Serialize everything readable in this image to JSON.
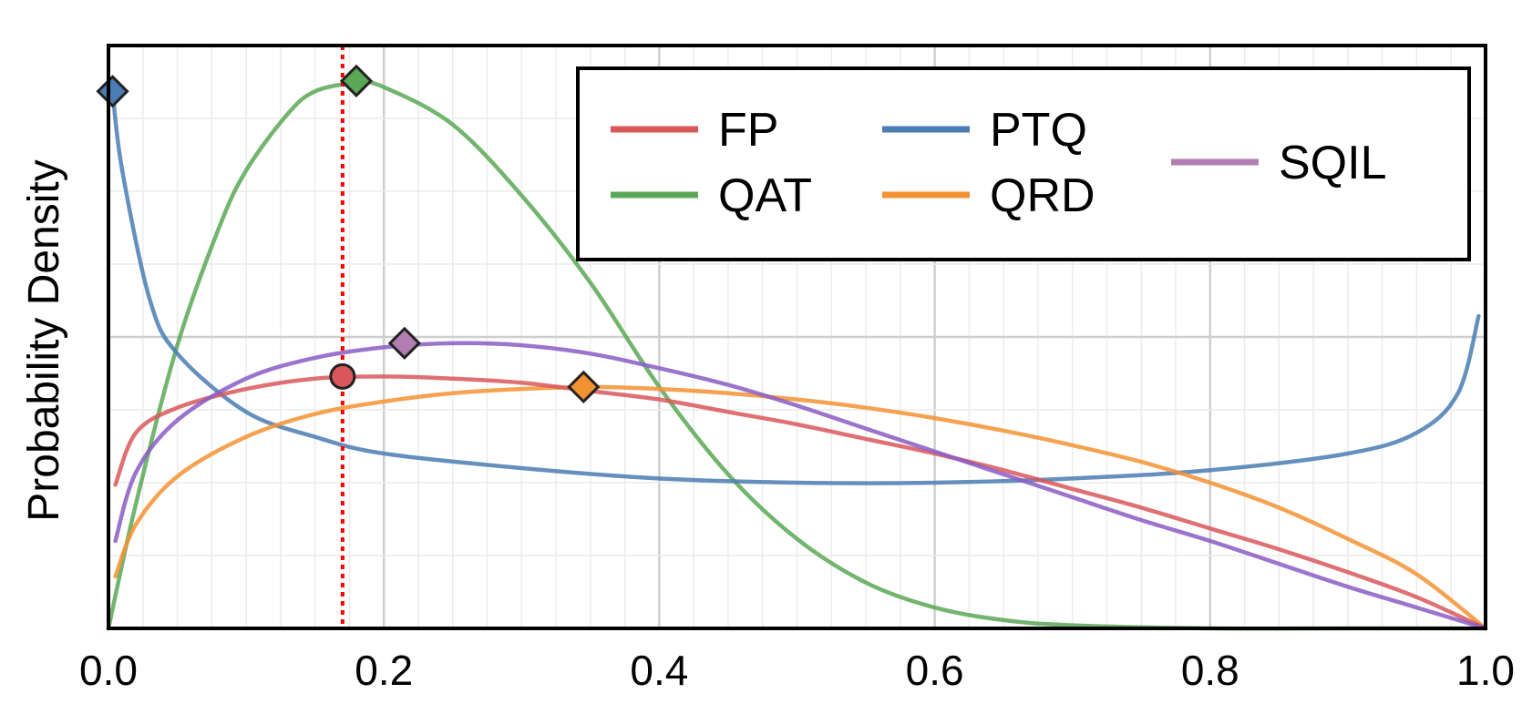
{
  "chart_data": {
    "type": "line",
    "title": "",
    "xlabel": "",
    "ylabel": "Probability Density",
    "xlim": [
      0.0,
      1.0
    ],
    "ylim": [
      0.0,
      2.8
    ],
    "grid": true,
    "y_tick_labels_visible": false,
    "x_ticks": [
      "0.0",
      "0.2",
      "0.4",
      "0.6",
      "0.8",
      "1.0"
    ],
    "legend": {
      "placement": "top-right",
      "columns": [
        [
          "FP",
          "QAT"
        ],
        [
          "PTQ",
          "QRD"
        ],
        [
          "SQIL"
        ]
      ]
    },
    "series": [
      {
        "name": "FP",
        "color": "#d9575a",
        "marker": "circle",
        "x": [
          0.005,
          0.02,
          0.05,
          0.1,
          0.15,
          0.2,
          0.25,
          0.3,
          0.35,
          0.4,
          0.45,
          0.5,
          0.55,
          0.6,
          0.65,
          0.7,
          0.75,
          0.8,
          0.85,
          0.9,
          0.95,
          1.0
        ],
        "y": [
          0.69,
          0.94,
          1.06,
          1.15,
          1.2,
          1.21,
          1.2,
          1.18,
          1.14,
          1.1,
          1.04,
          0.98,
          0.91,
          0.84,
          0.76,
          0.67,
          0.58,
          0.48,
          0.38,
          0.27,
          0.15,
          0.0
        ],
        "peak": {
          "x": 0.17,
          "y": 1.21
        }
      },
      {
        "name": "PTQ",
        "color": "#4a7db3",
        "marker": "diamond",
        "x": [
          0.003,
          0.01,
          0.03,
          0.05,
          0.1,
          0.15,
          0.2,
          0.3,
          0.4,
          0.5,
          0.6,
          0.7,
          0.8,
          0.9,
          0.95,
          0.98,
          0.995
        ],
        "y": [
          2.58,
          2.2,
          1.58,
          1.32,
          1.04,
          0.92,
          0.84,
          0.77,
          0.72,
          0.7,
          0.7,
          0.72,
          0.76,
          0.84,
          0.94,
          1.13,
          1.5
        ],
        "peak": {
          "x": 0.003,
          "y": 2.58
        }
      },
      {
        "name": "QAT",
        "color": "#59a855",
        "marker": "diamond",
        "x": [
          0.0,
          0.02,
          0.05,
          0.08,
          0.1,
          0.13,
          0.15,
          0.18,
          0.2,
          0.25,
          0.3,
          0.35,
          0.4,
          0.45,
          0.5,
          0.55,
          0.6,
          0.65,
          0.7,
          0.8,
          0.9,
          1.0
        ],
        "y": [
          0.0,
          0.6,
          1.36,
          1.92,
          2.2,
          2.47,
          2.58,
          2.62,
          2.6,
          2.42,
          2.08,
          1.66,
          1.16,
          0.74,
          0.43,
          0.22,
          0.1,
          0.04,
          0.015,
          0.0,
          0.0,
          0.0
        ],
        "peak": {
          "x": 0.18,
          "y": 2.63
        }
      },
      {
        "name": "QRD",
        "color": "#f39232",
        "marker": "diamond",
        "x": [
          0.005,
          0.02,
          0.05,
          0.1,
          0.15,
          0.2,
          0.25,
          0.3,
          0.35,
          0.4,
          0.45,
          0.5,
          0.55,
          0.6,
          0.65,
          0.7,
          0.75,
          0.8,
          0.85,
          0.9,
          0.95,
          1.0
        ],
        "y": [
          0.25,
          0.5,
          0.73,
          0.92,
          1.03,
          1.09,
          1.13,
          1.15,
          1.16,
          1.15,
          1.13,
          1.1,
          1.06,
          1.01,
          0.95,
          0.88,
          0.8,
          0.7,
          0.58,
          0.43,
          0.26,
          0.0
        ],
        "peak": {
          "x": 0.345,
          "y": 1.16
        }
      },
      {
        "name": "SQIL",
        "color": "#8a5cc4",
        "legend_color": "#b27db0",
        "marker": "diamond",
        "x": [
          0.005,
          0.02,
          0.05,
          0.1,
          0.15,
          0.2,
          0.25,
          0.3,
          0.35,
          0.4,
          0.45,
          0.5,
          0.55,
          0.6,
          0.65,
          0.7,
          0.75,
          0.8,
          0.85,
          0.9,
          0.95,
          1.0
        ],
        "y": [
          0.42,
          0.75,
          1.0,
          1.2,
          1.3,
          1.35,
          1.37,
          1.36,
          1.32,
          1.25,
          1.17,
          1.07,
          0.96,
          0.85,
          0.74,
          0.63,
          0.52,
          0.42,
          0.31,
          0.2,
          0.1,
          0.0
        ],
        "peak": {
          "x": 0.215,
          "y": 1.37
        }
      }
    ],
    "reference_line": {
      "x": 0.17,
      "color": "#ff0000",
      "style": "dotted"
    }
  }
}
